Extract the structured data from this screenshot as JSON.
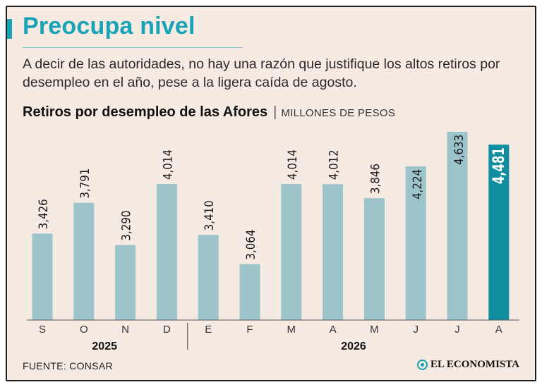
{
  "header": {
    "title": "Preocupa nivel",
    "subtitle": "A decir de las autoridades, no hay una razón que justifique los altos retiros por desempleo en el año, pese a la ligera caída de agosto.",
    "chart_title": "Retiros por desempleo de las Afores",
    "chart_separator": "|",
    "chart_unit": "MILLONES DE PESOS"
  },
  "footer": {
    "source": "FUENTE: CONSAR",
    "brand": "EL ECONOMISTA"
  },
  "colors": {
    "bar": "#9dc3cb",
    "highlight": "#0f8ea0",
    "title": "#1aa3b6",
    "background": "#f6ebe3"
  },
  "chart_data": {
    "type": "bar",
    "categories": [
      "S",
      "O",
      "N",
      "D",
      "E",
      "F",
      "M",
      "A",
      "M",
      "J",
      "J",
      "A"
    ],
    "values": [
      3426,
      3791,
      3290,
      4014,
      3410,
      3064,
      4014,
      4012,
      3846,
      4224,
      4633,
      4481
    ],
    "value_labels": [
      "3,426",
      "3,791",
      "3,290",
      "4,014",
      "3,410",
      "3,064",
      "4,014",
      "4,012",
      "3,846",
      "4,224",
      "4,633",
      "4,481"
    ],
    "highlight_index": 11,
    "year_groups": [
      {
        "label": "2025",
        "start": 0,
        "end": 3
      },
      {
        "label": "2026",
        "start": 4,
        "end": 11
      }
    ],
    "ylim": [
      2400,
      4633
    ],
    "grid": false,
    "legend": "none"
  }
}
